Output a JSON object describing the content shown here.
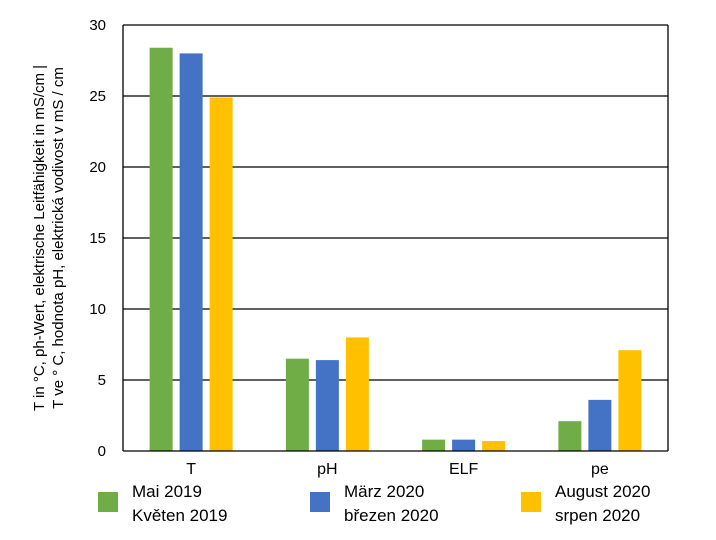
{
  "chart_data": {
    "type": "bar",
    "categories": [
      "T",
      "pH",
      "ELF",
      "pe"
    ],
    "ylabel_lines": [
      "T in °C, ph-Wert, elektrische Leitfähigkeit  in mS/cm |",
      "T ve ° C, hodnota pH, elektrická vodivost v mS / cm"
    ],
    "ylim": [
      0,
      30
    ],
    "yticks": [
      0,
      5,
      10,
      15,
      20,
      25,
      30
    ],
    "grid": true,
    "legend_position": "bottom",
    "series": [
      {
        "name": "Mai 2019",
        "name_line2": "Květen 2019",
        "color": "#70ad47",
        "values": [
          28.4,
          6.5,
          0.8,
          2.1
        ]
      },
      {
        "name": "März 2020",
        "name_line2": "březen 2020",
        "color": "#4472c4",
        "values": [
          28.0,
          6.4,
          0.8,
          3.6
        ]
      },
      {
        "name": "August 2020",
        "name_line2": "srpen 2020",
        "color": "#ffc000",
        "values": [
          24.9,
          8.0,
          0.7,
          7.1
        ]
      }
    ]
  }
}
